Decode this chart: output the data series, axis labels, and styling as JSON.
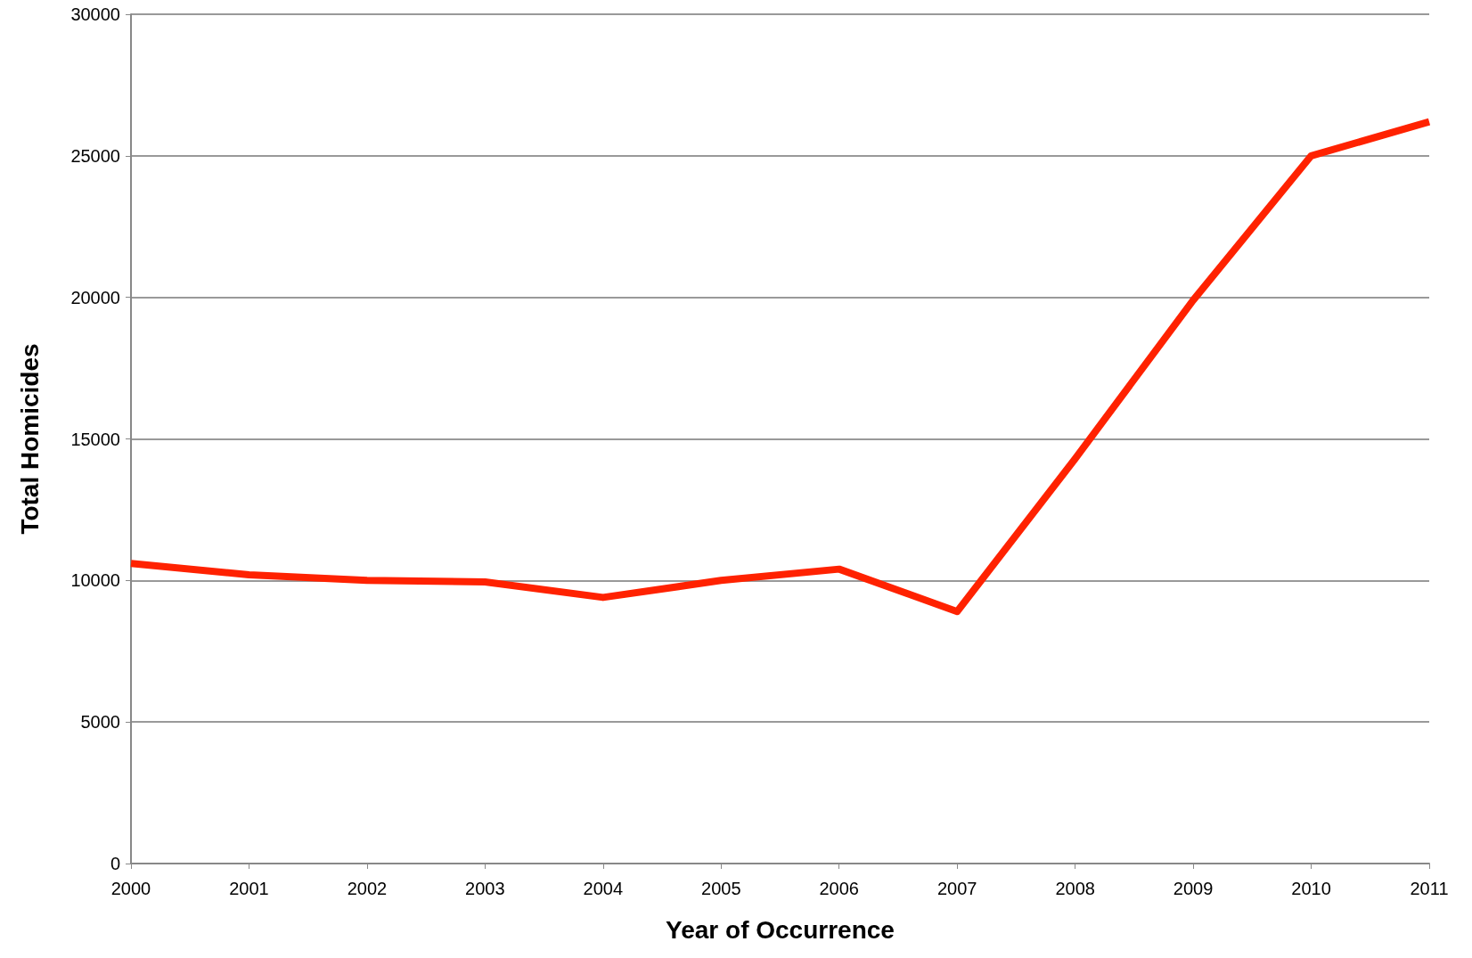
{
  "chart_data": {
    "type": "line",
    "xlabel": "Year of Occurrence",
    "ylabel": "Total Homicides",
    "categories": [
      "2000",
      "2001",
      "2002",
      "2003",
      "2004",
      "2005",
      "2006",
      "2007",
      "2008",
      "2009",
      "2010",
      "2011"
    ],
    "series": [
      {
        "color": "#ff2200",
        "values": [
          10600,
          10200,
          10000,
          9950,
          9400,
          10000,
          10400,
          8900,
          14300,
          19900,
          25000,
          26200
        ]
      }
    ],
    "ylim": [
      0,
      30000
    ],
    "yticks": [
      0,
      5000,
      10000,
      15000,
      20000,
      25000,
      30000
    ],
    "grid": "y",
    "marker": "none",
    "line_style": "solid"
  }
}
